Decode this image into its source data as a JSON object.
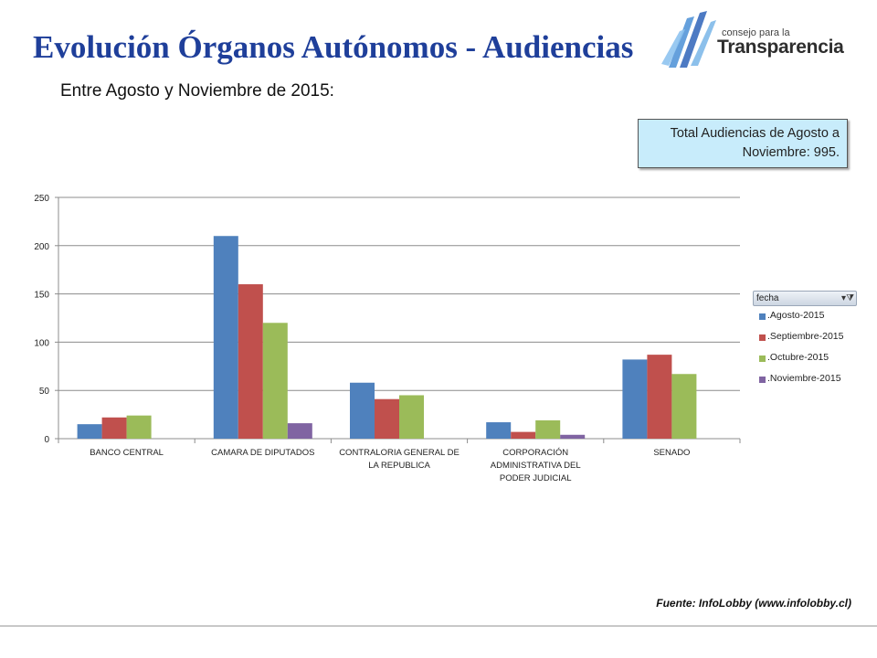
{
  "header": {
    "title": "Evolución Órganos Autónomos - Audiencias",
    "subtitle": "Entre Agosto y Noviembre de 2015:"
  },
  "logo": {
    "line1": "consejo para la",
    "line2": "Transparencia"
  },
  "callout": {
    "text": "Total Audiencias de Agosto a Noviembre: 995."
  },
  "source": {
    "text": "Fuente: InfoLobby (www.infolobby.cl)"
  },
  "legend": {
    "field_label": "fecha",
    "filter_icon": "filter-dropdown-icon"
  },
  "colors": {
    "title": "#1f3f9a",
    "agosto": "#4f81bd",
    "septiembre": "#c0504d",
    "octubre": "#9bbb59",
    "noviembre": "#8064a2",
    "callout_bg": "#c8ecfb"
  },
  "chart_data": {
    "type": "bar",
    "categories": [
      [
        "BANCO CENTRAL"
      ],
      [
        "CAMARA DE DIPUTADOS"
      ],
      [
        "CONTRALORIA GENERAL DE",
        "LA REPUBLICA"
      ],
      [
        "CORPORACIÓN",
        "ADMINISTRATIVA DEL",
        "PODER JUDICIAL"
      ],
      [
        "SENADO"
      ]
    ],
    "series": [
      {
        "name": ".Agosto-2015",
        "color": "#4f81bd",
        "values": [
          15,
          210,
          58,
          17,
          82
        ]
      },
      {
        "name": ".Septiembre-2015",
        "color": "#c0504d",
        "values": [
          22,
          160,
          41,
          7,
          87
        ]
      },
      {
        "name": ".Octubre-2015",
        "color": "#9bbb59",
        "values": [
          24,
          120,
          45,
          19,
          67
        ]
      },
      {
        "name": ".Noviembre-2015",
        "color": "#8064a2",
        "values": [
          0,
          16,
          0,
          4,
          0
        ]
      }
    ],
    "ylim": [
      0,
      250
    ],
    "yticks": [
      0,
      50,
      100,
      150,
      200,
      250
    ],
    "grid": true,
    "legend_position": "right"
  }
}
